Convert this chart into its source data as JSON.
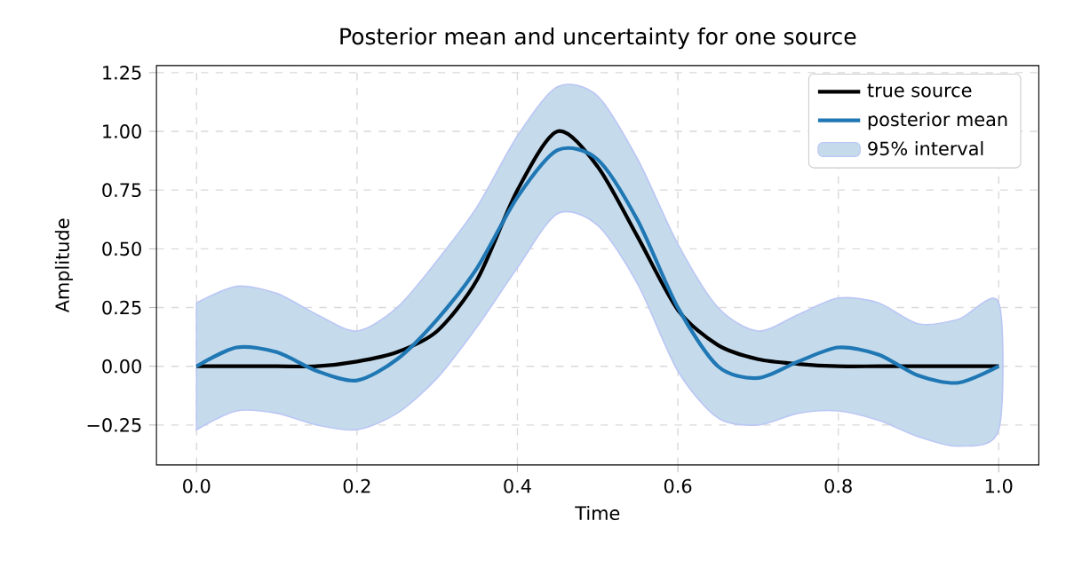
{
  "chart_data": {
    "type": "line",
    "title": "Posterior mean and uncertainty for one source",
    "xlabel": "Time",
    "ylabel": "Amplitude",
    "x": [
      0,
      0.05,
      0.1,
      0.15,
      0.2,
      0.25,
      0.3,
      0.35,
      0.4,
      0.45,
      0.5,
      0.55,
      0.6,
      0.65,
      0.7,
      0.75,
      0.8,
      0.85,
      0.9,
      0.95,
      1.0
    ],
    "series": [
      {
        "name": "true source",
        "color": "#000000",
        "values": [
          0,
          0,
          0,
          0,
          0.02,
          0.06,
          0.15,
          0.37,
          0.75,
          1.0,
          0.85,
          0.55,
          0.24,
          0.09,
          0.03,
          0.01,
          0,
          0,
          0,
          0,
          0
        ]
      },
      {
        "name": "posterior mean",
        "color": "#1f77b4",
        "values": [
          0,
          0.08,
          0.06,
          -0.02,
          -0.06,
          0.03,
          0.2,
          0.42,
          0.72,
          0.92,
          0.88,
          0.62,
          0.25,
          0.0,
          -0.05,
          0.02,
          0.08,
          0.05,
          -0.04,
          -0.07,
          0
        ]
      },
      {
        "name": "95% interval",
        "type": "area",
        "color": "#c5dbec",
        "values": [
          null,
          null,
          null,
          null,
          null,
          null,
          null,
          null,
          null,
          null,
          null,
          null,
          null,
          null,
          null,
          null,
          null,
          null,
          null,
          null,
          null
        ],
        "lower": [
          -0.27,
          -0.19,
          -0.2,
          -0.25,
          -0.27,
          -0.2,
          -0.05,
          0.17,
          0.42,
          0.65,
          0.6,
          0.35,
          -0.02,
          -0.22,
          -0.25,
          -0.2,
          -0.19,
          -0.23,
          -0.3,
          -0.34,
          -0.27
        ],
        "upper": [
          0.27,
          0.34,
          0.31,
          0.22,
          0.15,
          0.25,
          0.45,
          0.68,
          0.98,
          1.19,
          1.15,
          0.88,
          0.52,
          0.25,
          0.15,
          0.22,
          0.29,
          0.27,
          0.18,
          0.2,
          0.27
        ]
      }
    ],
    "xlim": [
      -0.05,
      1.05
    ],
    "ylim": [
      -0.42,
      1.28
    ],
    "xticks": [
      {
        "value": 0,
        "label": "0.0"
      },
      {
        "value": 0.2,
        "label": "0.2"
      },
      {
        "value": 0.4,
        "label": "0.4"
      },
      {
        "value": 0.6,
        "label": "0.6"
      },
      {
        "value": 0.8,
        "label": "0.8"
      },
      {
        "value": 1.0,
        "label": "1.0"
      }
    ],
    "yticks": [
      {
        "value": -0.25,
        "label": "−0.25"
      },
      {
        "value": 0,
        "label": "0.00"
      },
      {
        "value": 0.25,
        "label": "0.25"
      },
      {
        "value": 0.5,
        "label": "0.50"
      },
      {
        "value": 0.75,
        "label": "0.75"
      },
      {
        "value": 1.0,
        "label": "1.00"
      },
      {
        "value": 1.25,
        "label": "1.25"
      }
    ],
    "grid": true,
    "legend": "top right",
    "line_style": "solid",
    "marker": "none"
  }
}
